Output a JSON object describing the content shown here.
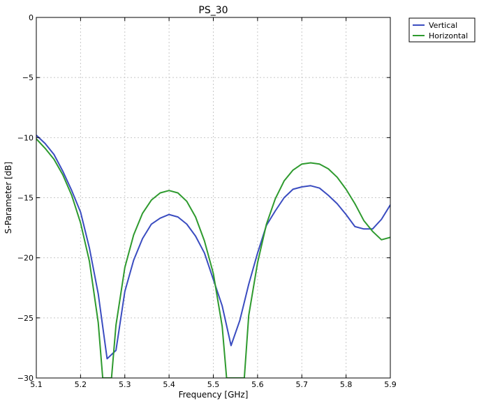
{
  "chart_data": {
    "type": "line",
    "title": "PS_30",
    "xlabel": "Frequency [GHz]",
    "ylabel": "S-Parameter [dB]",
    "xlim": [
      5.1,
      5.9
    ],
    "ylim": [
      -30,
      0
    ],
    "xticks": [
      5.1,
      5.2,
      5.3,
      5.4,
      5.5,
      5.6,
      5.7,
      5.8,
      5.9
    ],
    "yticks": [
      -30,
      -25,
      -20,
      -15,
      -10,
      -5,
      0
    ],
    "xtick_labels": [
      "5.1",
      "5.2",
      "5.3",
      "5.4",
      "5.5",
      "5.6",
      "5.7",
      "5.8",
      "5.9"
    ],
    "ytick_labels": [
      "−30",
      "−25",
      "−20",
      "−15",
      "−10",
      "−5",
      "0"
    ],
    "grid": true,
    "legend_position": "outside-top-right",
    "series": [
      {
        "name": "Vertical",
        "color": "#3a4cc0",
        "x": [
          5.1,
          5.12,
          5.14,
          5.16,
          5.18,
          5.2,
          5.22,
          5.24,
          5.26,
          5.28,
          5.3,
          5.32,
          5.34,
          5.36,
          5.38,
          5.4,
          5.42,
          5.44,
          5.46,
          5.48,
          5.5,
          5.52,
          5.54,
          5.56,
          5.58,
          5.6,
          5.62,
          5.64,
          5.66,
          5.68,
          5.7,
          5.72,
          5.74,
          5.76,
          5.78,
          5.8,
          5.82,
          5.84,
          5.86,
          5.88,
          5.9
        ],
        "y": [
          -9.8,
          -10.5,
          -11.4,
          -12.8,
          -14.4,
          -16.2,
          -19.2,
          -23.0,
          -28.4,
          -27.7,
          -22.8,
          -20.2,
          -18.4,
          -17.2,
          -16.7,
          -16.4,
          -16.6,
          -17.2,
          -18.2,
          -19.6,
          -21.8,
          -24.0,
          -27.3,
          -25.2,
          -22.2,
          -19.6,
          -17.3,
          -16.1,
          -15.0,
          -14.3,
          -14.1,
          -14.0,
          -14.2,
          -14.8,
          -15.5,
          -16.4,
          -17.4,
          -17.6,
          -17.6,
          -16.8,
          -15.6
        ]
      },
      {
        "name": "Horizontal",
        "color": "#2e9a2e",
        "x": [
          5.1,
          5.12,
          5.14,
          5.16,
          5.18,
          5.2,
          5.22,
          5.24,
          5.25,
          5.26,
          5.27,
          5.28,
          5.3,
          5.32,
          5.34,
          5.36,
          5.38,
          5.4,
          5.42,
          5.44,
          5.46,
          5.48,
          5.5,
          5.52,
          5.53,
          5.54,
          5.55,
          5.56,
          5.57,
          5.58,
          5.6,
          5.62,
          5.64,
          5.66,
          5.68,
          5.7,
          5.72,
          5.74,
          5.76,
          5.78,
          5.8,
          5.82,
          5.84,
          5.86,
          5.88,
          5.9
        ],
        "y": [
          -10.1,
          -10.9,
          -11.8,
          -13.1,
          -14.8,
          -17.1,
          -20.3,
          -25.4,
          -30.0,
          -30.0,
          -30.0,
          -25.6,
          -20.8,
          -18.1,
          -16.3,
          -15.2,
          -14.6,
          -14.4,
          -14.6,
          -15.3,
          -16.6,
          -18.6,
          -21.3,
          -25.7,
          -30.0,
          -30.0,
          -30.0,
          -30.0,
          -30.0,
          -24.8,
          -20.4,
          -17.2,
          -15.1,
          -13.6,
          -12.7,
          -12.2,
          -12.1,
          -12.2,
          -12.6,
          -13.3,
          -14.3,
          -15.5,
          -16.9,
          -17.8,
          -18.5,
          -18.3
        ]
      }
    ]
  }
}
